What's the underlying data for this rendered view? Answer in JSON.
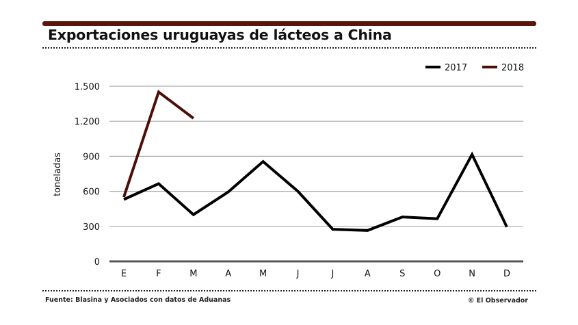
{
  "header": {
    "title": "Exportaciones uruguayas de lácteos a China"
  },
  "footer": {
    "source": "Fuente: Blasina y Asociados con datos de Aduanas",
    "credit": "© El Observador"
  },
  "colors": {
    "accent": "#5a160c",
    "series_2017": "#000000",
    "series_2018": "#4a1008",
    "grid": "#aaaaaa",
    "axis": "#555555"
  },
  "chart_data": {
    "type": "line",
    "title": "Exportaciones uruguayas de lácteos a China",
    "xlabel": "",
    "ylabel": "toneladas",
    "categories": [
      "E",
      "F",
      "M",
      "A",
      "M",
      "J",
      "J",
      "A",
      "S",
      "O",
      "N",
      "D"
    ],
    "ylim": [
      0,
      1500
    ],
    "yticks": [
      0,
      300,
      600,
      900,
      1200,
      1500
    ],
    "ytick_labels": [
      "0",
      "300",
      "600",
      "900",
      "1.200",
      "1.500"
    ],
    "grid": true,
    "legend_position": "top-right",
    "series": [
      {
        "name": "2017",
        "values": [
          530,
          665,
          400,
          595,
          855,
          600,
          275,
          265,
          380,
          365,
          915,
          295
        ]
      },
      {
        "name": "2018",
        "values": [
          550,
          1450,
          1225,
          null,
          null,
          null,
          null,
          null,
          null,
          null,
          null,
          null
        ]
      }
    ]
  }
}
